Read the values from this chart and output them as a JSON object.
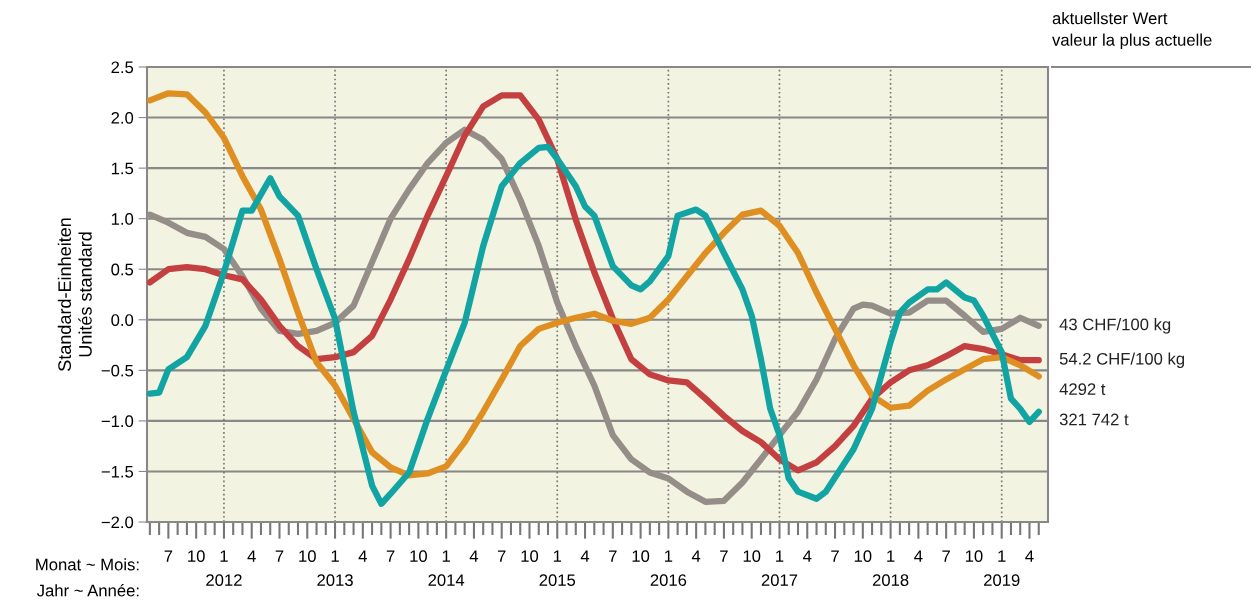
{
  "chart_data": {
    "type": "line",
    "ylabel": "Standard-Einheiten\nUnités standard",
    "annotations": [
      "aktuellster Wert\nvaleur la plus actuelle",
      "Monat ~ Mois:",
      "Jahr ~ Année:"
    ],
    "xlim": [
      "2011-04-22",
      "2019-06"
    ],
    "ylim": [
      -2.0,
      2.5
    ],
    "yticks": [
      {
        "value": -2.0,
        "label": "−2.0"
      },
      {
        "value": -1.5,
        "label": "−1.5"
      },
      {
        "value": -1.0,
        "label": "−1.0"
      },
      {
        "value": -0.5,
        "label": "−0.5"
      },
      {
        "value": 0.0,
        "label": "0.0"
      },
      {
        "value": 0.5,
        "label": "0.5"
      },
      {
        "value": 1.0,
        "label": "1.0"
      },
      {
        "value": 1.5,
        "label": "1.5"
      },
      {
        "value": 2.0,
        "label": "2.0"
      },
      {
        "value": 2.5,
        "label": "2.5"
      }
    ],
    "xticks": [
      {
        "value": "2011-05",
        "label": null
      },
      {
        "value": "2011-06",
        "label": null
      },
      {
        "value": "2011-07",
        "label": "7"
      },
      {
        "value": "2011-08",
        "label": null
      },
      {
        "value": "2011-09",
        "label": null
      },
      {
        "value": "2011-10",
        "label": "10"
      },
      {
        "value": "2011-11",
        "label": null
      },
      {
        "value": "2011-12",
        "label": null
      },
      {
        "value": "2012-01",
        "label": "1\n2012"
      },
      {
        "value": "2012-02",
        "label": null
      },
      {
        "value": "2012-03",
        "label": null
      },
      {
        "value": "2012-04",
        "label": "4"
      },
      {
        "value": "2012-05",
        "label": null
      },
      {
        "value": "2012-06",
        "label": null
      },
      {
        "value": "2012-07",
        "label": "7"
      },
      {
        "value": "2012-08",
        "label": null
      },
      {
        "value": "2012-09",
        "label": null
      },
      {
        "value": "2012-10",
        "label": "10"
      },
      {
        "value": "2012-11",
        "label": null
      },
      {
        "value": "2012-12",
        "label": null
      },
      {
        "value": "2013-01",
        "label": "1\n2013"
      },
      {
        "value": "2013-02",
        "label": null
      },
      {
        "value": "2013-03",
        "label": null
      },
      {
        "value": "2013-04",
        "label": "4"
      },
      {
        "value": "2013-05",
        "label": null
      },
      {
        "value": "2013-06",
        "label": null
      },
      {
        "value": "2013-07",
        "label": "7"
      },
      {
        "value": "2013-08",
        "label": null
      },
      {
        "value": "2013-09",
        "label": null
      },
      {
        "value": "2013-10",
        "label": "10"
      },
      {
        "value": "2013-11",
        "label": null
      },
      {
        "value": "2013-12",
        "label": null
      },
      {
        "value": "2014-01",
        "label": "1\n2014"
      },
      {
        "value": "2014-02",
        "label": null
      },
      {
        "value": "2014-03",
        "label": null
      },
      {
        "value": "2014-04",
        "label": "4"
      },
      {
        "value": "2014-05",
        "label": null
      },
      {
        "value": "2014-06",
        "label": null
      },
      {
        "value": "2014-07",
        "label": "7"
      },
      {
        "value": "2014-08",
        "label": null
      },
      {
        "value": "2014-09",
        "label": null
      },
      {
        "value": "2014-10",
        "label": "10"
      },
      {
        "value": "2014-11",
        "label": null
      },
      {
        "value": "2014-12",
        "label": null
      },
      {
        "value": "2015-01",
        "label": "1\n2015"
      },
      {
        "value": "2015-02",
        "label": null
      },
      {
        "value": "2015-03",
        "label": null
      },
      {
        "value": "2015-04",
        "label": "4"
      },
      {
        "value": "2015-05",
        "label": null
      },
      {
        "value": "2015-06",
        "label": null
      },
      {
        "value": "2015-07",
        "label": "7"
      },
      {
        "value": "2015-08",
        "label": null
      },
      {
        "value": "2015-09",
        "label": null
      },
      {
        "value": "2015-10",
        "label": "10"
      },
      {
        "value": "2015-11",
        "label": null
      },
      {
        "value": "2015-12",
        "label": null
      },
      {
        "value": "2016-01",
        "label": "1\n2016"
      },
      {
        "value": "2016-02",
        "label": null
      },
      {
        "value": "2016-03",
        "label": null
      },
      {
        "value": "2016-04",
        "label": "4"
      },
      {
        "value": "2016-05",
        "label": null
      },
      {
        "value": "2016-06",
        "label": null
      },
      {
        "value": "2016-07",
        "label": "7"
      },
      {
        "value": "2016-08",
        "label": null
      },
      {
        "value": "2016-09",
        "label": null
      },
      {
        "value": "2016-10",
        "label": "10"
      },
      {
        "value": "2016-11",
        "label": null
      },
      {
        "value": "2016-12",
        "label": null
      },
      {
        "value": "2017-01",
        "label": "1\n2017"
      },
      {
        "value": "2017-02",
        "label": null
      },
      {
        "value": "2017-03",
        "label": null
      },
      {
        "value": "2017-04",
        "label": "4"
      },
      {
        "value": "2017-05",
        "label": null
      },
      {
        "value": "2017-06",
        "label": null
      },
      {
        "value": "2017-07",
        "label": "7"
      },
      {
        "value": "2017-08",
        "label": null
      },
      {
        "value": "2017-09",
        "label": null
      },
      {
        "value": "2017-10",
        "label": "10"
      },
      {
        "value": "2017-11",
        "label": null
      },
      {
        "value": "2017-12",
        "label": null
      },
      {
        "value": "2018-01",
        "label": "1\n2018"
      },
      {
        "value": "2018-02",
        "label": null
      },
      {
        "value": "2018-03",
        "label": null
      },
      {
        "value": "2018-04",
        "label": "4"
      },
      {
        "value": "2018-05",
        "label": null
      },
      {
        "value": "2018-06",
        "label": null
      },
      {
        "value": "2018-07",
        "label": "7"
      },
      {
        "value": "2018-08",
        "label": null
      },
      {
        "value": "2018-09",
        "label": null
      },
      {
        "value": "2018-10",
        "label": "10"
      },
      {
        "value": "2018-11",
        "label": null
      },
      {
        "value": "2018-12",
        "label": null
      },
      {
        "value": "2019-01",
        "label": "1\n2019"
      },
      {
        "value": "2019-02",
        "label": null
      },
      {
        "value": "2019-03",
        "label": null
      },
      {
        "value": "2019-04",
        "label": "4"
      },
      {
        "value": "2019-05",
        "label": null
      }
    ],
    "grid": "y",
    "legend": false,
    "marker": "none",
    "line_style": "solid",
    "ref_lines": [
      {
        "axis": "x",
        "value": "2012-01",
        "label": null,
        "color": "#777777",
        "line_style": "dotted"
      },
      {
        "axis": "x",
        "value": "2013-01",
        "label": null,
        "color": "#777777",
        "line_style": "dotted"
      },
      {
        "axis": "x",
        "value": "2014-01",
        "label": null,
        "color": "#777777",
        "line_style": "dotted"
      },
      {
        "axis": "x",
        "value": "2015-01",
        "label": null,
        "color": "#777777",
        "line_style": "dotted"
      },
      {
        "axis": "x",
        "value": "2016-01",
        "label": null,
        "color": "#777777",
        "line_style": "dotted"
      },
      {
        "axis": "x",
        "value": "2017-01",
        "label": null,
        "color": "#777777",
        "line_style": "dotted"
      },
      {
        "axis": "x",
        "value": "2018-01",
        "label": null,
        "color": "#777777",
        "line_style": "dotted"
      },
      {
        "axis": "x",
        "value": "2019-01",
        "label": null,
        "color": "#777777",
        "line_style": "dotted"
      }
    ],
    "series": [
      {
        "name": "43 CHF/100 kg",
        "color": "#958d88",
        "x": [
          "2011-05",
          "2011-07",
          "2011-09",
          "2011-11",
          "2012-01",
          "2012-03",
          "2012-05",
          "2012-07",
          "2012-09",
          "2012-11",
          "2013-01",
          "2013-03",
          "2013-05",
          "2013-07",
          "2013-09",
          "2013-11",
          "2014-01",
          "2014-03",
          "2014-05",
          "2014-07",
          "2014-09",
          "2014-11",
          "2015-01",
          "2015-03",
          "2015-05",
          "2015-07",
          "2015-09",
          "2015-11",
          "2016-01",
          "2016-03",
          "2016-05",
          "2016-07",
          "2016-09",
          "2016-11",
          "2017-01",
          "2017-03",
          "2017-05",
          "2017-07",
          "2017-09",
          "2017-10",
          "2017-11",
          "2018-01",
          "2018-03",
          "2018-05",
          "2018-07",
          "2018-09",
          "2018-11",
          "2019-01",
          "2019-03",
          "2019-05"
        ],
        "values": [
          1.04,
          0.96,
          0.86,
          0.82,
          0.7,
          0.43,
          0.11,
          -0.11,
          -0.14,
          -0.11,
          -0.03,
          0.14,
          0.57,
          1.0,
          1.29,
          1.55,
          1.75,
          1.88,
          1.78,
          1.59,
          1.19,
          0.73,
          0.17,
          -0.26,
          -0.65,
          -1.14,
          -1.38,
          -1.51,
          -1.57,
          -1.7,
          -1.8,
          -1.79,
          -1.61,
          -1.38,
          -1.14,
          -0.91,
          -0.59,
          -0.19,
          0.11,
          0.15,
          0.14,
          0.06,
          0.07,
          0.19,
          0.19,
          0.04,
          -0.12,
          -0.09,
          0.02,
          -0.06
        ]
      },
      {
        "name": "54.2 CHF/100 kg",
        "color": "#c44040",
        "x": [
          "2011-05",
          "2011-07",
          "2011-09",
          "2011-11",
          "2012-01",
          "2012-03",
          "2012-05",
          "2012-07",
          "2012-09",
          "2012-11",
          "2013-01",
          "2013-03",
          "2013-05",
          "2013-07",
          "2013-09",
          "2013-11",
          "2014-01",
          "2014-03",
          "2014-05",
          "2014-07",
          "2014-09",
          "2014-11",
          "2015-01",
          "2015-03",
          "2015-05",
          "2015-07",
          "2015-09",
          "2015-11",
          "2016-01",
          "2016-03",
          "2016-05",
          "2016-07",
          "2016-09",
          "2016-11",
          "2017-01",
          "2017-03",
          "2017-05",
          "2017-07",
          "2017-09",
          "2017-11",
          "2018-01",
          "2018-03",
          "2018-05",
          "2018-07",
          "2018-09",
          "2018-11",
          "2019-01",
          "2019-03",
          "2019-05"
        ],
        "values": [
          0.37,
          0.5,
          0.52,
          0.5,
          0.44,
          0.4,
          0.2,
          -0.06,
          -0.26,
          -0.39,
          -0.37,
          -0.32,
          -0.16,
          0.2,
          0.6,
          1.03,
          1.42,
          1.82,
          2.11,
          2.22,
          2.22,
          1.98,
          1.59,
          0.99,
          0.47,
          0.01,
          -0.39,
          -0.54,
          -0.6,
          -0.62,
          -0.78,
          -0.95,
          -1.1,
          -1.21,
          -1.38,
          -1.49,
          -1.41,
          -1.25,
          -1.05,
          -0.78,
          -0.62,
          -0.5,
          -0.45,
          -0.36,
          -0.26,
          -0.29,
          -0.34,
          -0.4,
          -0.4
        ]
      },
      {
        "name": "4292 t",
        "color": "#df8f22",
        "x": [
          "2011-05",
          "2011-07",
          "2011-09",
          "2011-11",
          "2012-01",
          "2012-03",
          "2012-05",
          "2012-07",
          "2012-09",
          "2012-11",
          "2013-01",
          "2013-03",
          "2013-05",
          "2013-07",
          "2013-09",
          "2013-11",
          "2014-01",
          "2014-03",
          "2014-05",
          "2014-07",
          "2014-09",
          "2014-11",
          "2015-01",
          "2015-03",
          "2015-05",
          "2015-07",
          "2015-09",
          "2015-11",
          "2016-01",
          "2016-03",
          "2016-05",
          "2016-07",
          "2016-09",
          "2016-11",
          "2017-01",
          "2017-03",
          "2017-05",
          "2017-07",
          "2017-09",
          "2017-11",
          "2018-01",
          "2018-03",
          "2018-05",
          "2018-07",
          "2018-09",
          "2018-11",
          "2019-01",
          "2019-03",
          "2019-05"
        ],
        "values": [
          2.17,
          2.24,
          2.23,
          2.05,
          1.8,
          1.42,
          1.09,
          0.6,
          0.07,
          -0.42,
          -0.65,
          -0.98,
          -1.31,
          -1.46,
          -1.54,
          -1.52,
          -1.45,
          -1.21,
          -0.91,
          -0.59,
          -0.26,
          -0.09,
          -0.03,
          0.02,
          0.06,
          -0.01,
          -0.04,
          0.02,
          0.2,
          0.43,
          0.66,
          0.86,
          1.04,
          1.08,
          0.93,
          0.66,
          0.27,
          -0.09,
          -0.45,
          -0.75,
          -0.87,
          -0.85,
          -0.7,
          -0.59,
          -0.49,
          -0.39,
          -0.37,
          -0.45,
          -0.56
        ]
      },
      {
        "name": "321 742 t",
        "color": "#12a3a3",
        "x": [
          "2011-05",
          "2011-06",
          "2011-07",
          "2011-09",
          "2011-11",
          "2012-01",
          "2012-03",
          "2012-04",
          "2012-06",
          "2012-07",
          "2012-09",
          "2012-11",
          "2013-01",
          "2013-03",
          "2013-05",
          "2013-06",
          "2013-07",
          "2013-09",
          "2013-11",
          "2014-01",
          "2014-03",
          "2014-05",
          "2014-07",
          "2014-09",
          "2014-11",
          "2014-12",
          "2015-01",
          "2015-03",
          "2015-04",
          "2015-05",
          "2015-07",
          "2015-09",
          "2015-10",
          "2015-11",
          "2016-01",
          "2016-02",
          "2016-04",
          "2016-05",
          "2016-07",
          "2016-09",
          "2016-10",
          "2016-11",
          "2016-12",
          "2017-01",
          "2017-02",
          "2017-03",
          "2017-05",
          "2017-06",
          "2017-07",
          "2017-09",
          "2017-11",
          "2017-12",
          "2018-01",
          "2018-02",
          "2018-03",
          "2018-05",
          "2018-06",
          "2018-07",
          "2018-09",
          "2018-10",
          "2018-11",
          "2019-01",
          "2019-02",
          "2019-03",
          "2019-04",
          "2019-05"
        ],
        "values": [
          -0.73,
          -0.72,
          -0.49,
          -0.37,
          -0.06,
          0.47,
          1.08,
          1.08,
          1.4,
          1.22,
          1.03,
          0.5,
          0.01,
          -0.91,
          -1.64,
          -1.82,
          -1.72,
          -1.51,
          -0.98,
          -0.5,
          -0.03,
          0.73,
          1.32,
          1.55,
          1.7,
          1.71,
          1.59,
          1.32,
          1.12,
          1.03,
          0.53,
          0.34,
          0.3,
          0.38,
          0.63,
          1.03,
          1.09,
          1.03,
          0.66,
          0.3,
          0.04,
          -0.39,
          -0.88,
          -1.14,
          -1.57,
          -1.7,
          -1.77,
          -1.7,
          -1.56,
          -1.28,
          -0.88,
          -0.55,
          -0.22,
          0.07,
          0.17,
          0.3,
          0.3,
          0.37,
          0.22,
          0.19,
          0.04,
          -0.32,
          -0.78,
          -0.88,
          -1.01,
          -0.91
        ]
      }
    ]
  }
}
